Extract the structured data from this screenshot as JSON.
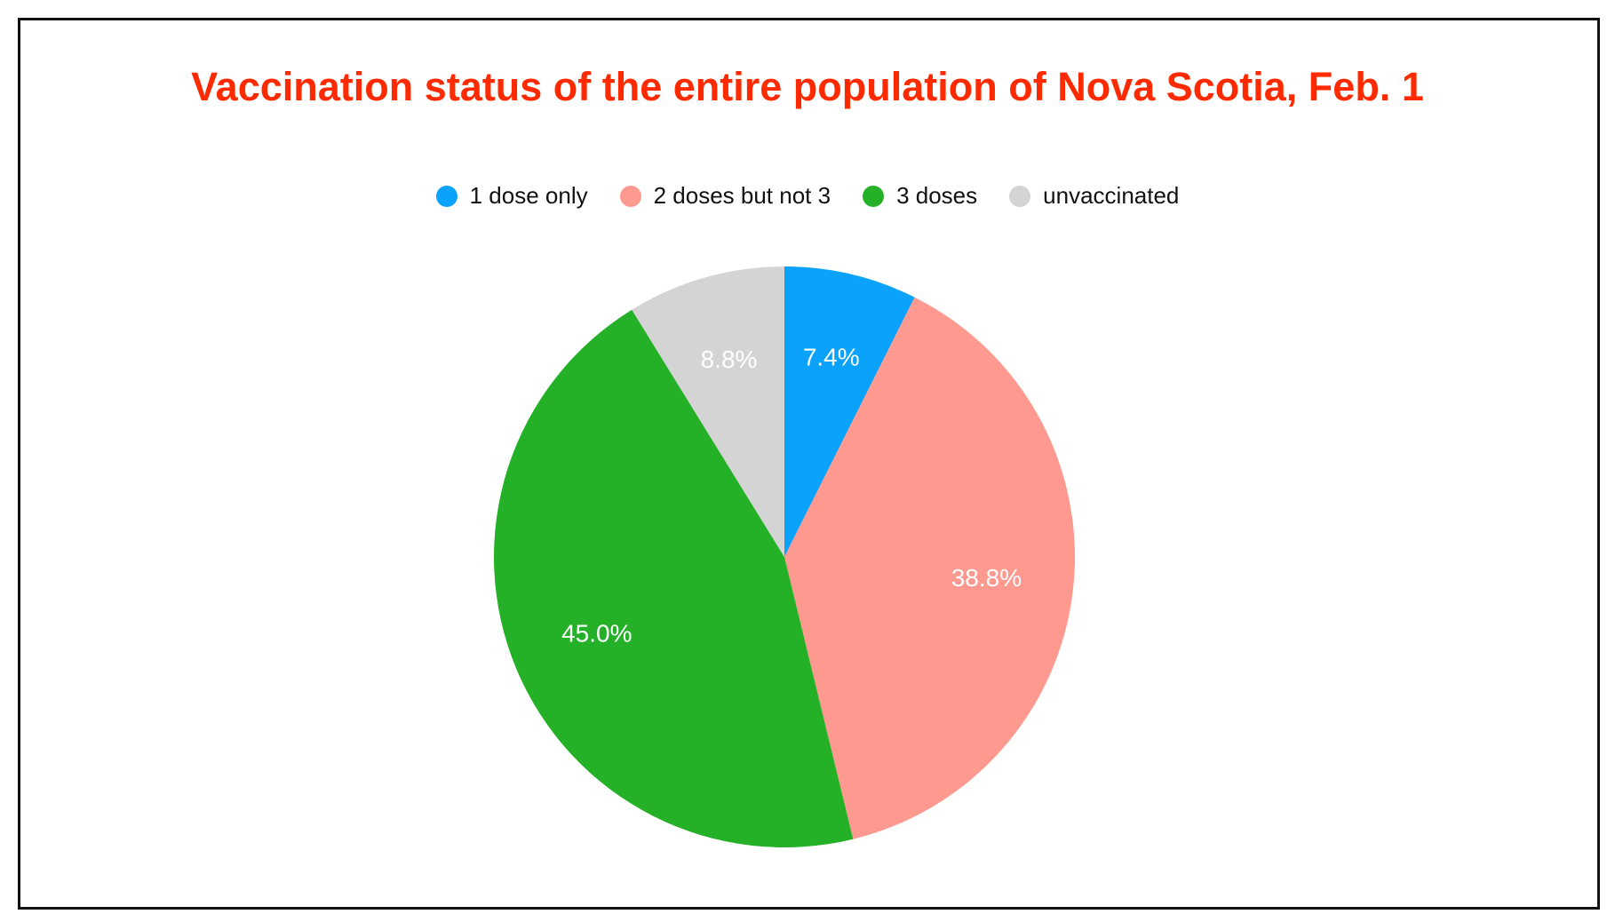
{
  "chart_data": {
    "type": "pie",
    "title": "Vaccination status of the entire population of Nova Scotia, Feb. 1",
    "legend_position": "top",
    "slices": [
      {
        "label": "1 dose only",
        "value": 7.4,
        "value_label": "7.4%",
        "color": "#0aa2fb"
      },
      {
        "label": "2 doses but not 3",
        "value": 38.8,
        "value_label": "38.8%",
        "color": "#fe9990"
      },
      {
        "label": "3 doses",
        "value": 45.0,
        "value_label": "45.0%",
        "color": "#24b128"
      },
      {
        "label": "unvaccinated",
        "value": 8.8,
        "value_label": "8.8%",
        "color": "#d4d4d4"
      }
    ]
  },
  "colors": {
    "title": "#ff2a00",
    "label_text": "#ffffff"
  }
}
